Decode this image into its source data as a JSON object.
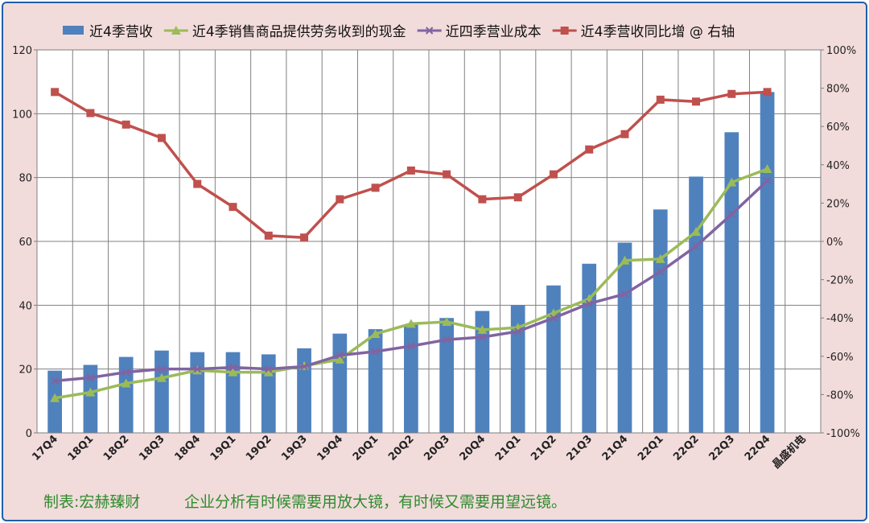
{
  "colors": {
    "bar": "#4f81bd",
    "cash_line": "#9bbb59",
    "cost_line": "#8064a2",
    "growth_line": "#c0504d",
    "plot_bg": "#ffffff",
    "outer_bg": "#f2dcdb",
    "footer_text": "#2e8b2e"
  },
  "legend": [
    {
      "label": "近4季营收",
      "icon": "bar-swatch"
    },
    {
      "label": "近4季销售商品提供劳务收到的现金",
      "icon": "triangle-marker"
    },
    {
      "label": "近四季营业成本",
      "icon": "x-marker"
    },
    {
      "label": "近4季营收同比增 @ 右轴",
      "icon": "square-marker"
    }
  ],
  "footer": {
    "left": "制表:宏赫臻财",
    "right": "企业分析有时候需要用放大镜，有时候又需要用望远镜。"
  },
  "chart_data": {
    "type": "bar",
    "categories": [
      "17Q4",
      "18Q1",
      "18Q2",
      "18Q3",
      "18Q4",
      "19Q1",
      "19Q2",
      "19Q3",
      "19Q4",
      "20Q1",
      "20Q2",
      "20Q3",
      "20Q4",
      "21Q1",
      "21Q2",
      "21Q3",
      "21Q4",
      "22Q1",
      "22Q2",
      "22Q3",
      "22Q4",
      "晶盛机电"
    ],
    "y_left": {
      "min": 0,
      "max": 120,
      "ticks": [
        "0",
        "20",
        "40",
        "60",
        "80",
        "100",
        "120"
      ]
    },
    "y_right": {
      "min": -100,
      "max": 100,
      "ticks": [
        "-100%",
        "-80%",
        "-60%",
        "-40%",
        "-20%",
        "0%",
        "20%",
        "40%",
        "60%",
        "80%",
        "100%"
      ]
    },
    "grid": true,
    "legend_position": "top",
    "series": [
      {
        "name": "近4季营收",
        "type": "bar",
        "axis": "left",
        "values": [
          19.5,
          21.3,
          23.8,
          25.8,
          25.3,
          25.3,
          24.6,
          26.5,
          31.1,
          32.5,
          34.0,
          36.0,
          38.2,
          40.0,
          46.2,
          53.0,
          59.6,
          70.0,
          80.3,
          94.2,
          106.8,
          null
        ]
      },
      {
        "name": "近4季销售商品提供劳务收到的现金",
        "type": "line",
        "axis": "left",
        "marker": "triangle",
        "values": [
          10.9,
          12.7,
          15.5,
          17.2,
          19.6,
          19.0,
          19.0,
          21.0,
          23.0,
          31.0,
          34.2,
          34.8,
          32.3,
          33.0,
          37.5,
          42.0,
          54.0,
          54.5,
          63.0,
          78.5,
          82.7,
          null
        ]
      },
      {
        "name": "近四季营业成本",
        "type": "line",
        "axis": "left",
        "marker": "x",
        "values": [
          16.3,
          17.3,
          19.0,
          20.0,
          20.0,
          20.5,
          20.0,
          20.8,
          24.3,
          25.5,
          27.2,
          29.2,
          30.0,
          31.8,
          36.0,
          40.5,
          43.5,
          50.5,
          58.5,
          68.5,
          79.0,
          null
        ]
      },
      {
        "name": "近4季营收同比增 @ 右轴",
        "type": "line",
        "axis": "right",
        "marker": "square",
        "values": [
          78,
          67,
          61,
          54,
          30,
          18,
          3,
          2,
          22,
          28,
          37,
          35,
          22,
          23,
          35,
          48,
          56,
          74,
          73,
          77,
          78,
          null
        ]
      }
    ]
  }
}
